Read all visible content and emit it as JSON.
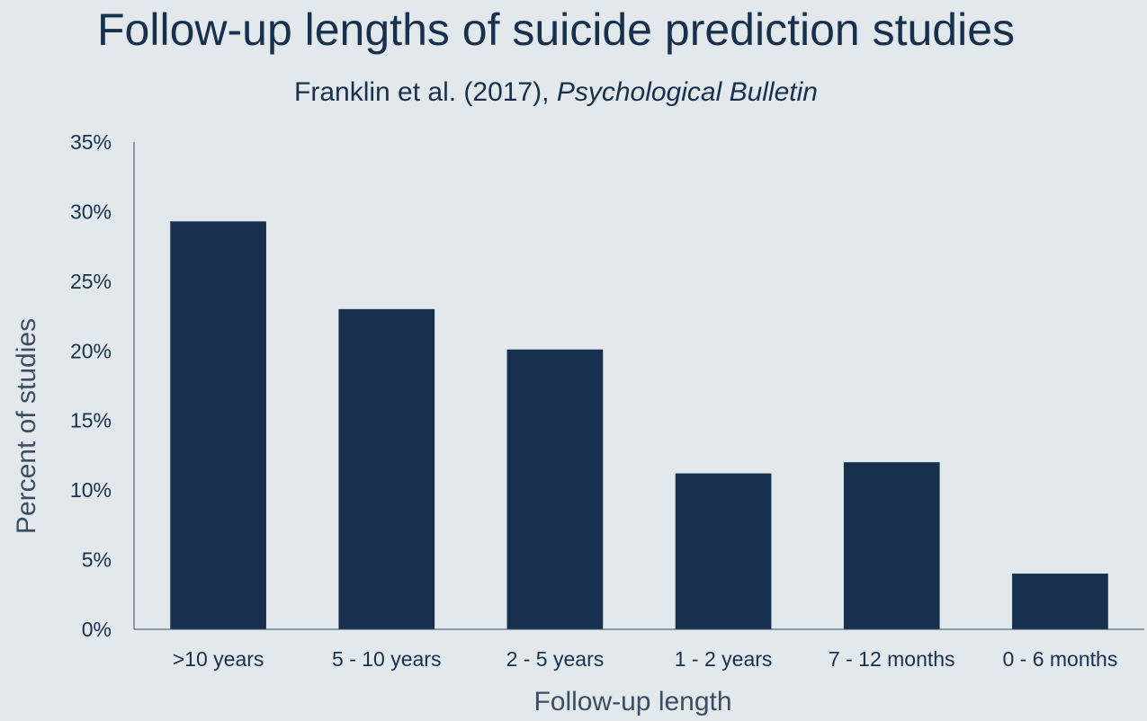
{
  "chart_data": {
    "type": "bar",
    "title": "Follow-up lengths of suicide prediction studies",
    "subtitle": {
      "authors": "Franklin et al. (2017), ",
      "journal": "Psychological Bulletin"
    },
    "xlabel": "Follow-up length",
    "ylabel": "Percent of studies",
    "categories": [
      ">10 years",
      "5 - 10 years",
      "2 - 5 years",
      "1 - 2 years",
      "7 - 12 months",
      "0 - 6 months"
    ],
    "values": [
      29.3,
      23.0,
      20.1,
      11.2,
      12.0,
      4.0
    ],
    "ylim": [
      0,
      35
    ],
    "yticks": [
      {
        "value": 0,
        "label": "0%"
      },
      {
        "value": 5,
        "label": "5%"
      },
      {
        "value": 10,
        "label": "10%"
      },
      {
        "value": 15,
        "label": "15%"
      },
      {
        "value": 20,
        "label": "20%"
      },
      {
        "value": 25,
        "label": "25%"
      },
      {
        "value": 30,
        "label": "30%"
      },
      {
        "value": 35,
        "label": "35%"
      }
    ],
    "grid": false,
    "bar_color": "#16304d",
    "axis_color": "#3b4d62",
    "background": "#e3e8ec"
  }
}
